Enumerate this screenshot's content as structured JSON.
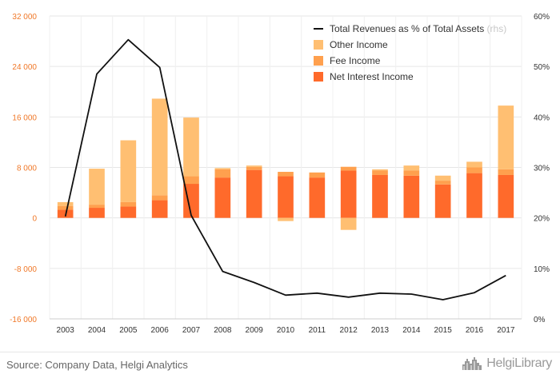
{
  "chart_data": {
    "type": "bar",
    "categories": [
      "2003",
      "2004",
      "2005",
      "2006",
      "2007",
      "2008",
      "2009",
      "2010",
      "2011",
      "2012",
      "2013",
      "2014",
      "2015",
      "2016",
      "2017"
    ],
    "stacking": "stacked",
    "y_left": {
      "min": -16000,
      "max": 32000,
      "ticks": [
        32000,
        24000,
        16000,
        8000,
        0,
        -8000,
        -16000
      ],
      "tick_labels": [
        "32 000",
        "24 000",
        "16 000",
        "8 000",
        "0",
        "-8 000",
        "-16 000"
      ]
    },
    "y_right": {
      "min": 0,
      "max": 60,
      "ticks": [
        60,
        50,
        40,
        30,
        20,
        10,
        0
      ],
      "tick_labels": [
        "60%",
        "50%",
        "40%",
        "30%",
        "20%",
        "10%",
        "0%"
      ]
    },
    "series": [
      {
        "name": "Net Interest Income",
        "kind": "bar",
        "axis": "left",
        "color": "#ff6a2b",
        "values": [
          1300,
          1600,
          1800,
          2800,
          5400,
          6400,
          7600,
          6600,
          6400,
          7500,
          6800,
          6700,
          5300,
          7100,
          6800
        ]
      },
      {
        "name": "Fee Income",
        "kind": "bar",
        "axis": "left",
        "color": "#ffa04e",
        "values": [
          600,
          500,
          700,
          800,
          1200,
          1300,
          500,
          700,
          800,
          600,
          700,
          800,
          600,
          900,
          900
        ]
      },
      {
        "name": "Other Income",
        "kind": "bar",
        "axis": "left",
        "color": "#ffbf72",
        "values": [
          600,
          5700,
          9800,
          15300,
          9300,
          200,
          200,
          -500,
          0,
          -1900,
          200,
          800,
          800,
          900,
          10100
        ]
      },
      {
        "name": "Total Revenues as % of Total Assets",
        "name_suffix": "(rhs)",
        "kind": "line",
        "axis": "right",
        "color": "#111111",
        "values": [
          20.3,
          48.5,
          55.3,
          49.8,
          20.5,
          9.4,
          7.2,
          4.7,
          5.1,
          4.3,
          5.1,
          4.9,
          3.8,
          5.2,
          8.6
        ]
      }
    ],
    "legend": {
      "position": "top-right",
      "order": [
        "Total Revenues as % of Total Assets",
        "Other Income",
        "Fee Income",
        "Net Interest Income"
      ]
    },
    "grid": true
  },
  "footer": {
    "source": "Source: Company Data, Helgi Analytics",
    "brand": "HelgiLibrary"
  },
  "colors": {
    "left_axis_text": "#f07828",
    "grid": "#e6e6e6",
    "brand_gray": "#9a9a9a"
  },
  "icons": {
    "brand_logo": "helgi-skyline-icon"
  }
}
